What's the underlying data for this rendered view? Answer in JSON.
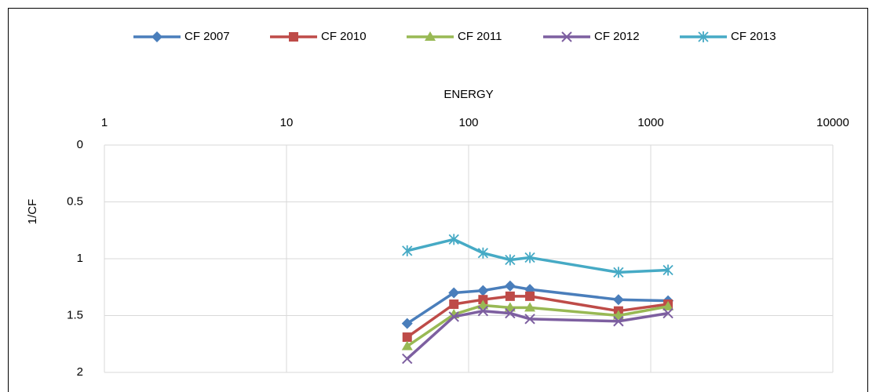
{
  "chart_data": {
    "type": "line",
    "x_label": "ENERGY",
    "y_label": "1/CF",
    "xlog": true,
    "y_reversed": true,
    "grid": true,
    "legend": "top",
    "x": [
      46,
      83,
      120,
      169,
      217,
      665,
      1245
    ],
    "xlim": [
      1,
      10000
    ],
    "xticks": [
      1,
      10,
      100,
      1000,
      10000
    ],
    "ylim": [
      0,
      2
    ],
    "yticks": [
      0,
      0.5,
      1,
      1.5,
      2
    ],
    "series": [
      {
        "name": "CF 2007",
        "color": "#4a7ebb",
        "marker": "diamond",
        "values": [
          1.57,
          1.3,
          1.28,
          1.24,
          1.27,
          1.36,
          1.37
        ]
      },
      {
        "name": "CF 2010",
        "color": "#be4b48",
        "marker": "square",
        "values": [
          1.69,
          1.4,
          1.36,
          1.33,
          1.33,
          1.46,
          1.4
        ]
      },
      {
        "name": "CF 2011",
        "color": "#98b954",
        "marker": "triangle",
        "values": [
          1.77,
          1.49,
          1.41,
          1.43,
          1.43,
          1.5,
          1.42
        ]
      },
      {
        "name": "CF 2012",
        "color": "#7d5fa0",
        "marker": "x",
        "values": [
          1.88,
          1.51,
          1.46,
          1.48,
          1.53,
          1.55,
          1.48
        ]
      },
      {
        "name": "CF 2013",
        "color": "#46aac5",
        "marker": "star",
        "values": [
          0.93,
          0.83,
          0.95,
          1.01,
          0.99,
          1.12,
          1.1
        ]
      }
    ]
  }
}
